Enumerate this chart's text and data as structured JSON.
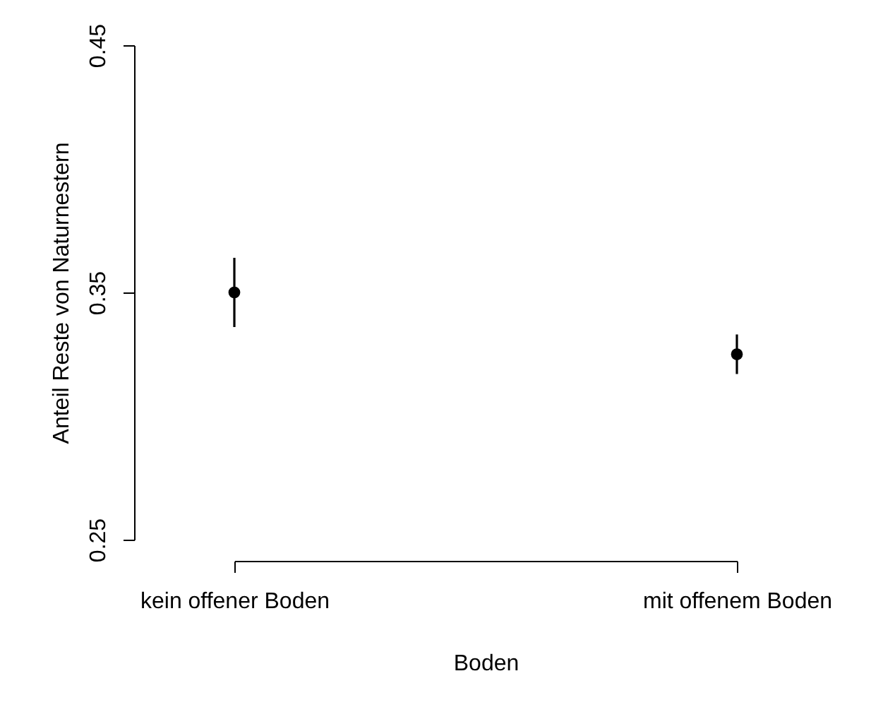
{
  "chart_data": {
    "type": "scatter",
    "xlabel": "Boden",
    "ylabel": "Anteil Reste von Naturnestern",
    "categories": [
      "kein offener Boden",
      "mit offenem Boden"
    ],
    "values": [
      0.35,
      0.325
    ],
    "errors": [
      0.014,
      0.008
    ],
    "color": "#000000",
    "marker": "circle",
    "ylim": [
      0.25,
      0.45
    ],
    "yticks": [
      0.25,
      0.35,
      0.45
    ],
    "grid": false
  }
}
